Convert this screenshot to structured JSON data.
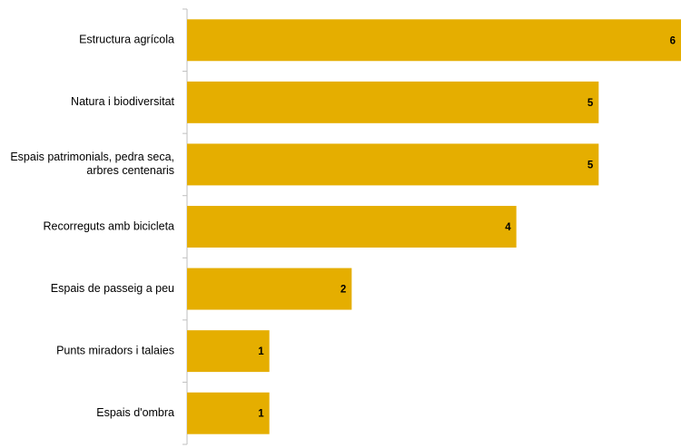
{
  "chart_data": {
    "type": "bar",
    "orientation": "horizontal",
    "categories": [
      [
        "Estructura agrícola"
      ],
      [
        "Natura i biodiversitat"
      ],
      [
        "Espais patrimonials, pedra seca,",
        "arbres centenaris"
      ],
      [
        "Recorreguts amb bicicleta"
      ],
      [
        "Espais de passeig a peu"
      ],
      [
        "Punts miradors i talaies"
      ],
      [
        "Espais d'ombra"
      ]
    ],
    "values": [
      6,
      5,
      5,
      4,
      2,
      1,
      1
    ],
    "xlim": [
      0,
      6
    ],
    "grid": false,
    "data_labels": true,
    "colors": {
      "bar": "#e5ae00",
      "axis": "#bfbfbf"
    }
  }
}
